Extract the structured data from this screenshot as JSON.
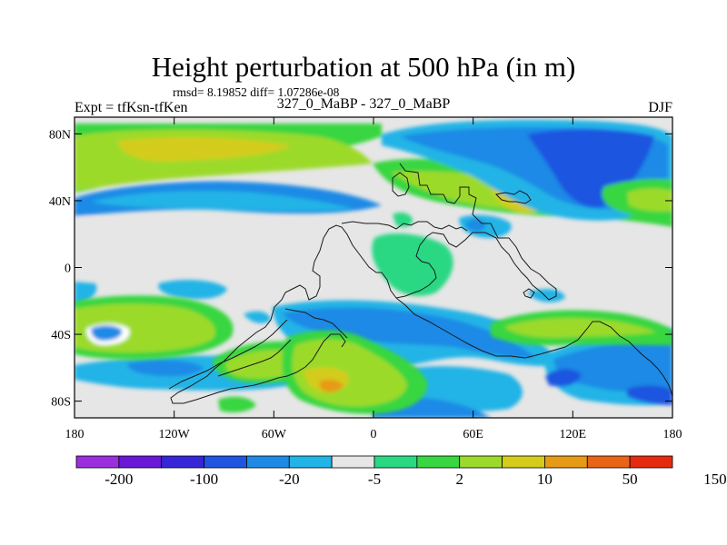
{
  "chart_data": {
    "type": "heatmap",
    "title": "Height perturbation at 500 hPa (in m)",
    "stats_text": "rmsd= 8.19852 diff= 1.07286e-08",
    "left_label": "Expt = tfKsn-tfKen",
    "center_label": "327_0_MaBP - 327_0_MaBP",
    "right_label": "DJF",
    "x_axis": {
      "range": [
        -180,
        180
      ],
      "ticks": [
        -180,
        -120,
        -60,
        0,
        60,
        120,
        180
      ],
      "tick_labels": [
        "180",
        "120W",
        "60W",
        "0",
        "60E",
        "120E",
        "180"
      ]
    },
    "y_axis": {
      "range": [
        -90,
        90
      ],
      "ticks": [
        80,
        40,
        0,
        -40,
        -80
      ],
      "tick_labels": [
        "80N",
        "40N",
        "0",
        "40S",
        "80S"
      ]
    },
    "colorbar": {
      "colors": [
        "#9b2fe0",
        "#6a18d6",
        "#3626d8",
        "#1f55e0",
        "#1e8ae6",
        "#21b4e6",
        "#e6e6e6",
        "#2ad884",
        "#38d640",
        "#9cda2a",
        "#d4cc1a",
        "#e69a16",
        "#ea6416",
        "#e62a10"
      ],
      "labels": [
        "-200",
        "-100",
        "-20",
        "-5",
        "2",
        "10",
        "50",
        "150"
      ]
    }
  }
}
